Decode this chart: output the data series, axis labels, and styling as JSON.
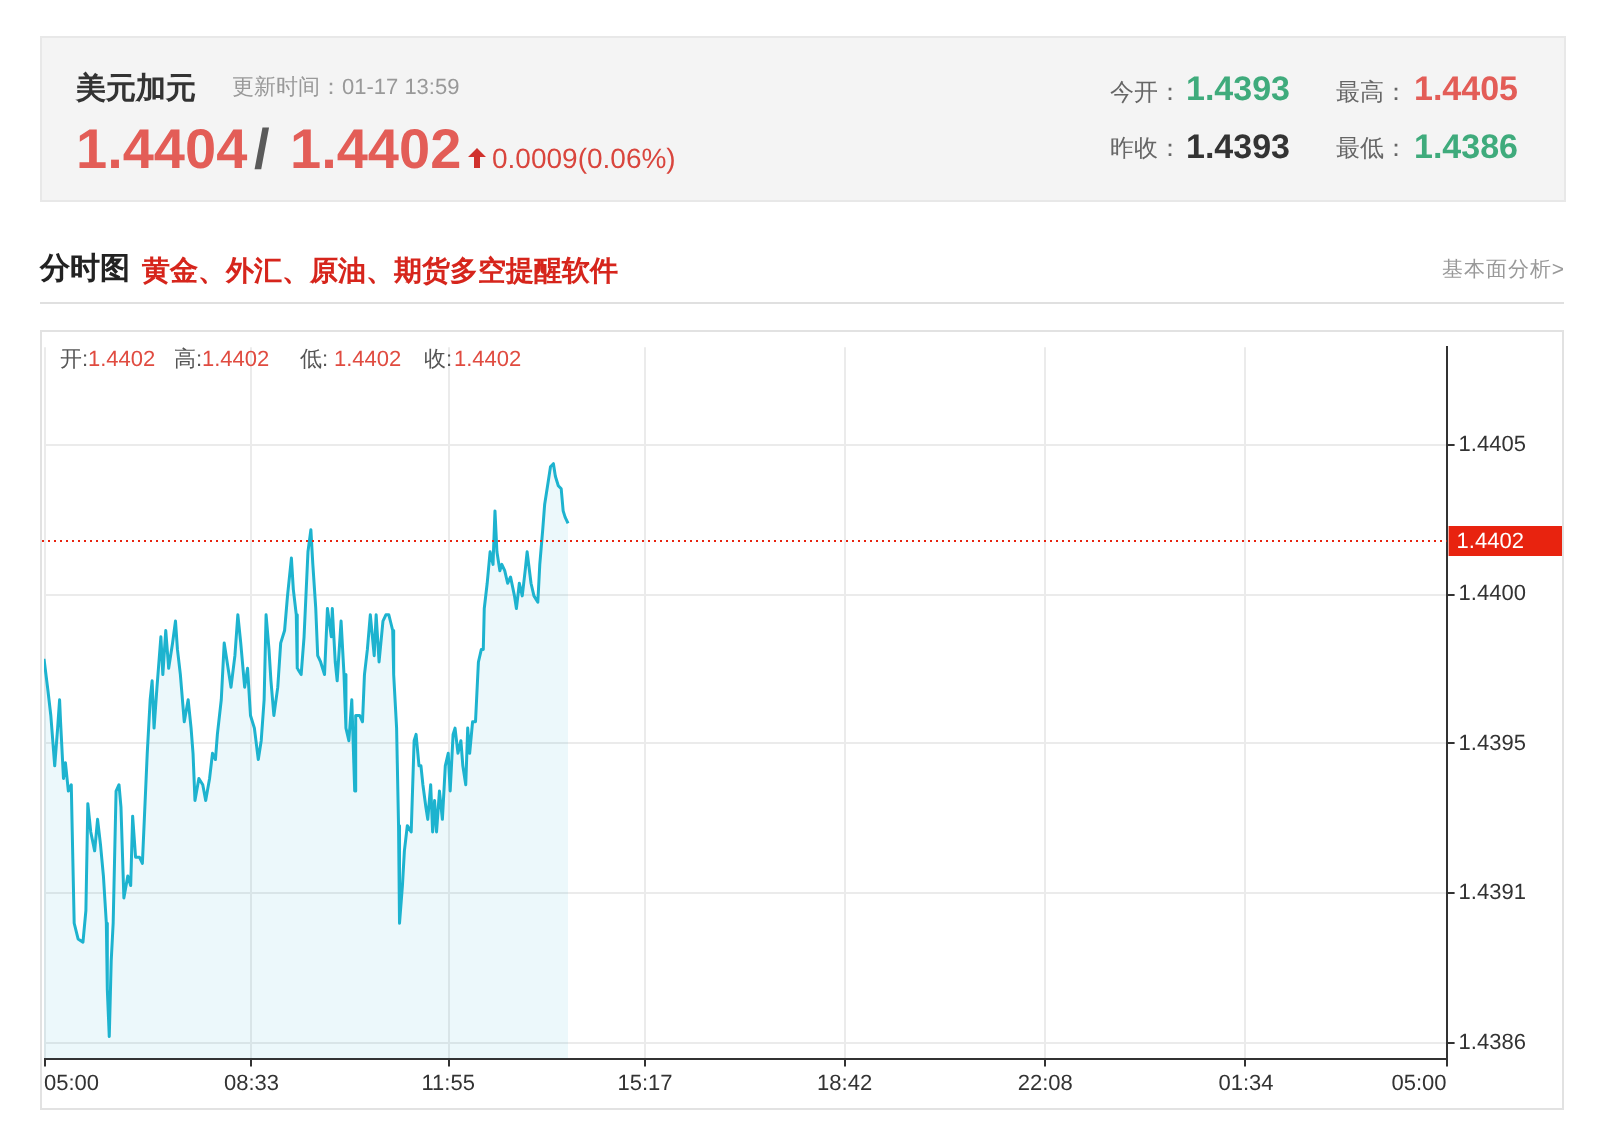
{
  "chart_data": {
    "type": "area",
    "title": "美元加元",
    "subtitle": "更新时间：01-17 13:59",
    "annotations": [
      "1.4404",
      "/",
      "1.4402",
      "0.0009(0.06%)",
      "今开：",
      "1.4393",
      "最高：",
      "1.4405",
      "昨收：",
      "1.4393",
      "最低：",
      "1.4386",
      "分时图",
      "黄金、外汇、原油、期货多空提醒软件",
      "基本面分析>",
      "开:",
      "1.4402",
      "高:",
      "1.4402",
      "低:",
      "1.4402",
      "收:",
      "1.4402"
    ],
    "color": "#1db3cf",
    "marker": "none",
    "x": [
      "--01-17T05:00",
      "--01-17T05:04",
      "--01-17T05:07",
      "--01-17T05:11",
      "--01-17T05:14",
      "--01-17T05:16",
      "--01-17T05:17",
      "--01-17T05:20",
      "--01-17T05:22",
      "--01-17T05:25",
      "--01-17T05:28",
      "--01-17T05:29",
      "--01-17T05:31",
      "--01-17T05:35",
      "--01-17T05:40",
      "--01-17T05:43",
      "--01-17T05:45",
      "--01-17T05:48",
      "--01-17T05:52",
      "--01-17T05:55",
      "--01-17T05:58",
      "--01-17T06:01",
      "--01-17T06:04",
      "--01-17T06:05",
      "--01-17T06:07",
      "--01-17T06:09",
      "--01-17T06:11",
      "--01-17T06:14",
      "--01-17T06:17",
      "--01-17T06:19",
      "--01-17T06:22",
      "--01-17T06:26",
      "--01-17T06:29",
      "--01-17T06:31",
      "--01-17T06:34",
      "--01-17T06:38",
      "--01-17T06:41",
      "--01-17T06:43",
      "--01-17T06:46",
      "--01-17T06:49",
      "--01-17T06:51",
      "--01-17T06:53",
      "--01-17T06:56",
      "--01-17T07:00",
      "--01-17T07:02",
      "--01-17T07:05",
      "--01-17T07:08",
      "--01-17T07:12",
      "--01-17T07:15",
      "--01-17T07:17",
      "--01-17T07:20",
      "--01-17T07:24",
      "--01-17T07:28",
      "--01-17T07:31",
      "--01-17T07:33",
      "--01-17T07:35",
      "--01-17T07:39",
      "--01-17T07:43",
      "--01-17T07:46",
      "--01-17T07:50",
      "--01-17T07:53",
      "--01-17T07:56",
      "--01-17T07:58",
      "--01-17T08:02",
      "--01-17T08:05",
      "--01-17T08:08",
      "--01-17T08:12",
      "--01-17T08:16",
      "--01-17T08:19",
      "--01-17T08:22",
      "--01-17T08:26",
      "--01-17T08:29",
      "--01-17T08:32",
      "--01-17T08:36",
      "--01-17T08:40",
      "--01-17T08:43",
      "--01-17T08:46",
      "--01-17T08:48",
      "--01-17T08:51",
      "--01-17T08:53",
      "--01-17T08:56",
      "--01-17T09:00",
      "--01-17T09:03",
      "--01-17T09:07",
      "--01-17T09:10",
      "--01-17T09:14",
      "--01-17T09:16",
      "--01-17T09:19",
      "--01-17T09:20",
      "--01-17T09:24",
      "--01-17T09:27",
      "--01-17T09:31",
      "--01-17T09:34",
      "--01-17T09:36",
      "--01-17T09:39",
      "--01-17T09:41",
      "--01-17T09:44",
      "--01-17T09:48",
      "--01-17T09:51",
      "--01-17T09:55",
      "--01-17T09:56",
      "--01-17T09:59",
      "--01-17T10:01",
      "--01-17T10:05",
      "--01-17T10:08",
      "--01-17T10:10",
      "--01-17T10:13",
      "--01-17T10:16",
      "--01-17T10:19",
      "--01-17T10:20",
      "--01-17T10:24",
      "--01-17T10:27",
      "--01-17T10:29",
      "--01-17T10:32",
      "--01-17T10:35",
      "--01-17T10:39",
      "--01-17T10:41",
      "--01-17T10:44",
      "--01-17T10:48",
      "--01-17T10:51",
      "--01-17T10:54",
      "--01-17T10:58",
      "--01-17T10:59",
      "--01-17T11:02",
      "--01-17T11:04",
      "--01-17T11:05",
      "--01-17T11:08",
      "--01-17T11:10",
      "--01-17T11:13",
      "--01-17T11:17",
      "--01-17T11:20",
      "--01-17T11:22",
      "--01-17T11:25",
      "--01-17T11:27",
      "--01-17T11:29",
      "--01-17T11:32",
      "--01-17T11:34",
      "--01-17T11:37",
      "--01-17T11:39",
      "--01-17T11:41",
      "--01-17T11:43",
      "--01-17T11:46",
      "--01-17T11:49",
      "--01-17T11:52",
      "--01-17T11:55",
      "--01-17T11:57",
      "--01-17T12:00",
      "--01-17T12:02",
      "--01-17T12:05",
      "--01-17T12:08",
      "--01-17T12:10",
      "--01-17T12:13",
      "--01-17T12:15",
      "--01-17T12:17",
      "--01-17T12:20",
      "--01-17T12:23",
      "--01-17T12:26",
      "--01-17T12:29",
      "--01-17T12:31",
      "--01-17T12:32",
      "--01-17T12:35",
      "--01-17T12:38",
      "--01-17T12:41",
      "--01-17T12:43",
      "--01-17T12:45",
      "--01-17T12:48",
      "--01-17T12:50",
      "--01-17T12:53",
      "--01-17T12:56",
      "--01-17T12:59",
      "--01-17T13:03",
      "--01-17T13:05",
      "--01-17T13:08",
      "--01-17T13:11",
      "--01-17T13:14",
      "--01-17T13:16",
      "--01-17T13:20",
      "--01-17T13:23",
      "--01-17T13:27",
      "--01-17T13:29",
      "--01-17T13:32",
      "--01-17T13:34",
      "--01-17T13:37",
      "--01-17T13:40",
      "--01-17T13:43",
      "--01-17T13:45",
      "--01-17T13:48",
      "--01-17T13:51",
      "--01-17T13:53",
      "--01-17T13:55",
      "--01-17T13:58"
    ],
    "values": [
      1.43982,
      1.43972,
      1.43964,
      1.43948,
      1.4396,
      1.43969,
      1.43962,
      1.43944,
      1.43949,
      1.4394,
      1.43942,
      1.43927,
      1.43898,
      1.43893,
      1.43892,
      1.43902,
      1.43936,
      1.43927,
      1.43921,
      1.43931,
      1.43923,
      1.43913,
      1.43898,
      1.43877,
      1.43862,
      1.43886,
      1.43898,
      1.4394,
      1.43942,
      1.43935,
      1.43906,
      1.43913,
      1.4391,
      1.43932,
      1.43919,
      1.43919,
      1.43917,
      1.43931,
      1.43952,
      1.43969,
      1.43975,
      1.4396,
      1.43973,
      1.43989,
      1.43977,
      1.43991,
      1.43979,
      1.43987,
      1.43994,
      1.43985,
      1.43977,
      1.43962,
      1.43969,
      1.4396,
      1.43952,
      1.43937,
      1.43944,
      1.43942,
      1.43937,
      1.43944,
      1.43952,
      1.4395,
      1.43958,
      1.43969,
      1.43987,
      1.43981,
      1.43973,
      1.43983,
      1.43996,
      1.43987,
      1.43973,
      1.43979,
      1.43964,
      1.4396,
      1.4395,
      1.43956,
      1.43969,
      1.43996,
      1.43985,
      1.43975,
      1.43964,
      1.43973,
      1.43987,
      1.43991,
      1.44002,
      1.44014,
      1.44004,
      1.43996,
      1.43979,
      1.43977,
      1.43989,
      1.44016,
      1.44023,
      1.44012,
      1.43998,
      1.43983,
      1.43981,
      1.43977,
      1.43998,
      1.43989,
      1.43998,
      1.43981,
      1.43975,
      1.43994,
      1.43977,
      1.4396,
      1.43956,
      1.43969,
      1.4394,
      1.43964,
      1.43964,
      1.43962,
      1.43977,
      1.43985,
      1.43996,
      1.43983,
      1.43996,
      1.43981,
      1.43994,
      1.43996,
      1.43996,
      1.43991,
      1.43977,
      1.4396,
      1.43929,
      1.43898,
      1.4391,
      1.43921,
      1.43929,
      1.43927,
      1.43956,
      1.43958,
      1.43948,
      1.43948,
      1.43942,
      1.43935,
      1.43931,
      1.43942,
      1.43927,
      1.43937,
      1.43927,
      1.4394,
      1.43931,
      1.43948,
      1.43952,
      1.4394,
      1.43958,
      1.4396,
      1.43952,
      1.43956,
      1.43948,
      1.43942,
      1.4396,
      1.43952,
      1.43962,
      1.43962,
      1.43981,
      1.43985,
      1.43985,
      1.43998,
      1.44006,
      1.44016,
      1.44012,
      1.44029,
      1.44016,
      1.4401,
      1.44012,
      1.4401,
      1.44006,
      1.44008,
      1.44002,
      1.43998,
      1.44006,
      1.44002,
      1.4401,
      1.44016,
      1.44006,
      1.44002,
      1.44,
      1.44012,
      1.44023,
      1.44031,
      1.44037,
      1.44043,
      1.44044,
      1.4404,
      1.44037,
      1.44036,
      1.44029,
      1.44027,
      1.44025
    ],
    "xlim": [
      "--01-17T05:00",
      "--01-18T05:00"
    ],
    "xticks": [
      {
        "value": "--01-17T05:00",
        "label": "05:00"
      },
      {
        "value": "--01-17T08:33",
        "label": "08:33"
      },
      {
        "value": "--01-17T11:55",
        "label": "11:55"
      },
      {
        "value": "--01-17T15:17",
        "label": "15:17"
      },
      {
        "value": "--01-17T18:42",
        "label": "18:42"
      },
      {
        "value": "--01-17T22:08",
        "label": "22:08"
      },
      {
        "value": "--01-18T01:34",
        "label": "01:34"
      },
      {
        "value": "--01-18T05:00",
        "label": "05:00"
      }
    ],
    "ylim": [
      1.43855,
      1.44081
    ],
    "yticks": [
      1.4386,
      {
        "value": 1.439075,
        "label": "1.4391"
      },
      {
        "value": 1.43955,
        "label": "1.4395"
      },
      {
        "value": 1.440025,
        "label": "1.4400"
      },
      1.4405
    ],
    "grid": true,
    "ref_lines": [
      {
        "axis": "y",
        "value": 1.4402,
        "label": "1.4402",
        "color": "#e8230f",
        "line_style": "dotted"
      }
    ]
  }
}
